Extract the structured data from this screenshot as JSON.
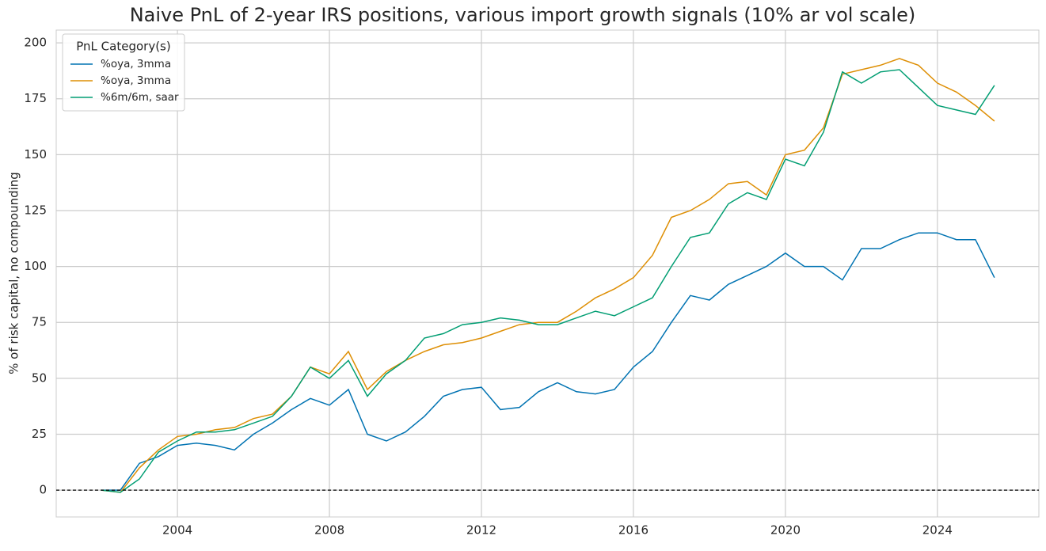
{
  "chart_data": {
    "type": "line",
    "title": "Naive PnL of 2-year IRS positions, various import growth signals (10% ar vol scale)",
    "y_label": "% of risk capital, no compounding",
    "legend_title": "PnL Category(s)",
    "legend": "upper left",
    "grid": true,
    "hline": 0,
    "x": [
      2002,
      2002.5,
      2003,
      2003.5,
      2004,
      2004.5,
      2005,
      2005.5,
      2006,
      2006.5,
      2007,
      2007.5,
      2008,
      2008.5,
      2009,
      2009.5,
      2010,
      2010.5,
      2011,
      2011.5,
      2012,
      2012.5,
      2013,
      2013.5,
      2014,
      2014.5,
      2015,
      2015.5,
      2016,
      2016.5,
      2017,
      2017.5,
      2018,
      2018.5,
      2019,
      2019.5,
      2020,
      2020.5,
      2021,
      2021.5,
      2022,
      2022.5,
      2023,
      2023.5,
      2024,
      2024.5,
      2025,
      2025.5
    ],
    "series": [
      {
        "name": "%oya, 3mma",
        "color": "#0173b2",
        "values": [
          0,
          0,
          12,
          15,
          20,
          21,
          20,
          18,
          25,
          30,
          36,
          41,
          38,
          45,
          25,
          22,
          26,
          33,
          42,
          45,
          46,
          36,
          37,
          44,
          48,
          44,
          43,
          45,
          55,
          62,
          75,
          87,
          85,
          92,
          96,
          100,
          106,
          100,
          100,
          94,
          108,
          108,
          112,
          115,
          115,
          112,
          112,
          95
        ]
      },
      {
        "name": "%oya, 3mma",
        "color": "#de8f05",
        "values": [
          0,
          -1,
          10,
          18,
          24,
          25,
          27,
          28,
          32,
          34,
          42,
          55,
          52,
          62,
          45,
          53,
          58,
          62,
          65,
          66,
          68,
          71,
          74,
          75,
          75,
          80,
          86,
          90,
          95,
          105,
          122,
          125,
          130,
          137,
          138,
          132,
          150,
          152,
          162,
          186,
          188,
          190,
          193,
          190,
          182,
          178,
          172,
          165
        ]
      },
      {
        "name": "%6m/6m, saar",
        "color": "#029e73",
        "values": [
          0,
          -1,
          5,
          17,
          22,
          26,
          26,
          27,
          30,
          33,
          42,
          55,
          50,
          58,
          42,
          52,
          58,
          68,
          70,
          74,
          75,
          77,
          76,
          74,
          74,
          77,
          80,
          78,
          82,
          86,
          100,
          113,
          115,
          128,
          133,
          130,
          148,
          145,
          160,
          187,
          182,
          187,
          188,
          180,
          172,
          170,
          168,
          181
        ]
      }
    ],
    "xlim": [
      2000.81,
      2026.67
    ],
    "xticks": [
      2004,
      2008,
      2012,
      2016,
      2020,
      2024
    ],
    "ylim": [
      -12,
      205.7
    ],
    "yticks": [
      0,
      25,
      50,
      75,
      100,
      125,
      150,
      175,
      200
    ]
  }
}
